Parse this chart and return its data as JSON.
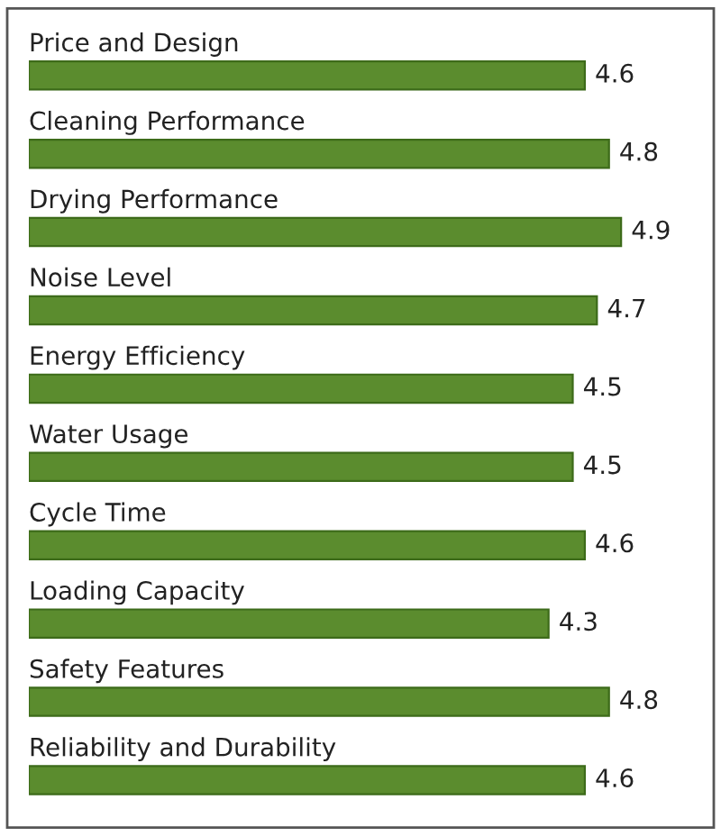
{
  "chart_data": {
    "type": "bar",
    "orientation": "horizontal",
    "categories": [
      "Price and Design",
      "Cleaning Performance",
      "Drying Performance",
      "Noise Level",
      "Energy Efficiency",
      "Water Usage",
      "Cycle Time",
      "Loading Capacity",
      "Safety Features",
      "Reliability and Durability"
    ],
    "values": [
      4.6,
      4.8,
      4.9,
      4.7,
      4.5,
      4.5,
      4.6,
      4.3,
      4.8,
      4.6
    ],
    "color": "#5b8c2e",
    "data_labels": true
  }
}
